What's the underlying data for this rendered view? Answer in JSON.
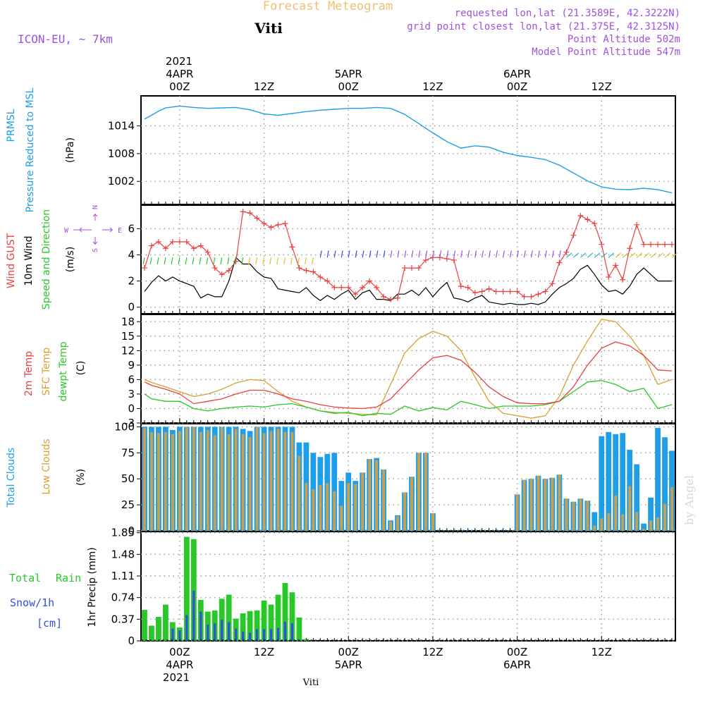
{
  "header": {
    "product_title": "Forecast Meteogram",
    "location": "Viti",
    "model": "ICON-EU, ~ 7km",
    "requested": "requested lon,lat (21.3589E, 42.3222N)",
    "grid_point": "grid point closest lon,lat (21.375E, 42.3125N)",
    "point_alt": "Point Altitude 502m",
    "model_alt": "Model Point Altitude 547m"
  },
  "time_axis": {
    "year": "2021",
    "top_labels": [
      {
        "t": 0,
        "line1": "4APR",
        "line2": "00Z"
      },
      {
        "t": 12,
        "line1": "",
        "line2": "12Z"
      },
      {
        "t": 24,
        "line1": "5APR",
        "line2": "00Z"
      },
      {
        "t": 36,
        "line1": "",
        "line2": "12Z"
      },
      {
        "t": 48,
        "line1": "6APR",
        "line2": "00Z"
      },
      {
        "t": 60,
        "line1": "",
        "line2": "12Z"
      }
    ],
    "bottom_labels": [
      {
        "t": 0,
        "line1": "00Z",
        "line2": "4APR"
      },
      {
        "t": 12,
        "line1": "12Z",
        "line2": ""
      },
      {
        "t": 24,
        "line1": "00Z",
        "line2": "5APR"
      },
      {
        "t": 36,
        "line1": "12Z",
        "line2": ""
      },
      {
        "t": 48,
        "line1": "00Z",
        "line2": "6APR"
      },
      {
        "t": 60,
        "line1": "12Z",
        "line2": ""
      }
    ],
    "t_min": -5.5,
    "t_max": 70.5
  },
  "footer_location": "Viti",
  "watermark": "by Angel",
  "panels": {
    "pressure": {
      "labels": [
        "PRMSL",
        "Pressure Reduced to MSL",
        "(hPa)"
      ],
      "ticks": [
        1002,
        1008,
        1014
      ],
      "ylim": [
        997,
        1020.5
      ]
    },
    "wind": {
      "labels": [
        "Wind GUST",
        "10m Wind",
        "Speed and Direction",
        "(m/s)"
      ],
      "compass": {
        "n": "N",
        "s": "S",
        "w": "W",
        "e": "E"
      },
      "ticks": [
        0,
        2,
        4,
        6
      ],
      "ylim": [
        -0.5,
        7.8
      ]
    },
    "temp": {
      "labels": [
        "2m Temp",
        "SFC Temp",
        "dewpt Temp",
        "(C)"
      ],
      "ticks": [
        -3,
        0,
        3,
        6,
        9,
        12,
        15,
        18
      ],
      "ylim": [
        -3,
        19.5
      ]
    },
    "clouds": {
      "labels": [
        "Total Clouds",
        "Low Clouds",
        "(%)"
      ],
      "ticks": [
        0,
        25,
        50,
        75,
        100
      ],
      "ylim": [
        0,
        103
      ]
    },
    "precip": {
      "labels": [
        "Total",
        "Rain",
        "Snow/1h",
        "[cm]",
        "1hr Precip (mm)"
      ],
      "ticks": [
        0,
        0.37,
        0.74,
        1.11,
        1.48,
        1.85
      ],
      "ylim": [
        0,
        1.87
      ]
    }
  },
  "colors": {
    "pressure": "#1e9ee8",
    "gust": "#e84040",
    "wind": "#000000",
    "t2m": "#e84040",
    "sfc": "#d9a030",
    "dewpt": "#28c828",
    "total_clouds": "#1e9ee8",
    "low_clouds": "#c8a050",
    "rain": "#28c828",
    "snow": "#3050e0",
    "purple": "#a050e0",
    "title_gold": "#f0c070"
  },
  "chart_data": [
    {
      "type": "line",
      "title": "PRMSL Pressure Reduced to MSL",
      "ylabel": "hPa",
      "x": [
        -5,
        -4,
        -3,
        -2,
        0,
        2,
        4,
        6,
        8,
        10,
        12,
        14,
        16,
        18,
        20,
        22,
        24,
        26,
        28,
        30,
        32,
        34,
        36,
        38,
        40,
        42,
        44,
        46,
        48,
        50,
        52,
        54,
        56,
        58,
        60,
        62,
        64,
        66,
        68,
        70
      ],
      "values": [
        1015.5,
        1016.3,
        1017.2,
        1017.9,
        1018.3,
        1018.0,
        1017.8,
        1017.9,
        1018.0,
        1017.5,
        1016.6,
        1016.3,
        1016.7,
        1017.1,
        1017.4,
        1017.6,
        1017.8,
        1017.8,
        1018.0,
        1017.8,
        1016.5,
        1014.5,
        1012.5,
        1010.6,
        1009.2,
        1009.7,
        1009.4,
        1008.3,
        1007.6,
        1007.2,
        1006.7,
        1005.5,
        1003.8,
        1002.1,
        1000.8,
        1000.3,
        1000.2,
        1000.5,
        1000.2,
        999.5
      ]
    },
    {
      "type": "line",
      "title": "Wind GUST / 10m Wind",
      "ylabel": "m/s",
      "x": [
        -5,
        -4,
        -3,
        -2,
        -1,
        0,
        1,
        2,
        3,
        4,
        5,
        6,
        7,
        8,
        9,
        10,
        11,
        12,
        13,
        14,
        15,
        16,
        17,
        18,
        19,
        20,
        21,
        22,
        23,
        24,
        25,
        26,
        27,
        28,
        29,
        30,
        31,
        32,
        33,
        34,
        35,
        36,
        37,
        38,
        39,
        40,
        41,
        42,
        43,
        44,
        45,
        46,
        47,
        48,
        49,
        50,
        51,
        52,
        53,
        54,
        55,
        56,
        57,
        58,
        59,
        60,
        61,
        62,
        63,
        64,
        65,
        66,
        67,
        68,
        69,
        70
      ],
      "series": [
        {
          "name": "Wind GUST",
          "values": [
            3.0,
            4.7,
            5.0,
            4.5,
            5.0,
            5.0,
            5.0,
            4.5,
            4.7,
            4.2,
            3.0,
            2.5,
            2.8,
            3.5,
            7.3,
            7.2,
            6.8,
            6.4,
            6.1,
            6.3,
            6.4,
            4.6,
            3.0,
            2.8,
            2.7,
            2.3,
            2.0,
            1.5,
            1.5,
            1.5,
            1.0,
            1.5,
            2.0,
            1.5,
            0.8,
            0.6,
            0.7,
            3.0,
            3.0,
            3.0,
            3.6,
            3.8,
            3.8,
            3.7,
            3.6,
            1.6,
            1.5,
            1.1,
            1.2,
            1.4,
            1.2,
            1.2,
            1.2,
            1.2,
            0.8,
            0.8,
            1.0,
            1.2,
            1.8,
            3.4,
            4.2,
            5.5,
            7.0,
            6.7,
            6.4,
            4.8,
            2.3,
            3.2,
            2.1,
            4.5,
            6.3,
            4.8,
            4.8,
            4.8,
            4.8,
            4.8
          ]
        },
        {
          "name": "10m Wind",
          "values": [
            1.2,
            1.9,
            2.4,
            2.0,
            2.3,
            2.0,
            1.8,
            1.6,
            0.7,
            1.0,
            0.8,
            0.8,
            2.0,
            3.8,
            3.3,
            3.3,
            2.7,
            2.3,
            2.2,
            1.4,
            1.3,
            1.2,
            1.1,
            1.5,
            0.9,
            0.5,
            0.9,
            0.6,
            1.0,
            1.3,
            0.6,
            1.1,
            1.3,
            0.6,
            0.6,
            0.5,
            1.0,
            1.0,
            1.3,
            0.9,
            1.5,
            0.8,
            1.4,
            1.9,
            0.7,
            0.6,
            0.4,
            0.7,
            0.9,
            0.4,
            0.3,
            0.2,
            0.3,
            0.2,
            0.2,
            0.3,
            0.2,
            0.4,
            1.0,
            1.5,
            1.8,
            2.2,
            2.9,
            3.2,
            2.5,
            1.7,
            1.2,
            1.3,
            1.0,
            1.6,
            2.5,
            3.0,
            2.5,
            2.0,
            2.0,
            2.0
          ]
        }
      ]
    },
    {
      "type": "line",
      "title": "2m Temp / SFC Temp / dewpt Temp",
      "ylabel": "C",
      "x": [
        -5,
        -4,
        -2,
        0,
        2,
        4,
        6,
        8,
        10,
        12,
        14,
        16,
        18,
        20,
        22,
        24,
        26,
        28,
        30,
        32,
        34,
        36,
        38,
        40,
        42,
        44,
        46,
        48,
        50,
        52,
        54,
        56,
        58,
        60,
        62,
        64,
        66,
        68,
        70
      ],
      "series": [
        {
          "name": "2m Temp",
          "values": [
            5.5,
            4.8,
            4.0,
            3.0,
            1.0,
            1.5,
            2.0,
            3.0,
            3.8,
            3.8,
            3.0,
            2.0,
            1.5,
            0.8,
            0.3,
            0.1,
            0.0,
            0.3,
            2.0,
            5.0,
            8.0,
            10.5,
            11.0,
            10.0,
            7.5,
            4.5,
            2.5,
            1.2,
            1.0,
            1.0,
            1.5,
            4.5,
            9.0,
            12.5,
            13.8,
            13.0,
            11.0,
            8.0,
            7.8
          ]
        },
        {
          "name": "SFC Temp",
          "values": [
            6.0,
            5.4,
            4.5,
            3.5,
            2.5,
            3.0,
            4.0,
            5.3,
            6.0,
            5.8,
            3.5,
            1.5,
            0.3,
            -0.5,
            -0.8,
            -1.0,
            -1.2,
            -1.3,
            5.0,
            11.5,
            14.5,
            16.0,
            15.0,
            12.0,
            6.5,
            1.5,
            -1.0,
            -1.5,
            -2.0,
            -1.5,
            2.5,
            9.0,
            14.0,
            18.5,
            18.0,
            15.0,
            11.0,
            5.0,
            6.0
          ]
        },
        {
          "name": "dewpt Temp",
          "values": [
            3.0,
            2.0,
            1.5,
            1.5,
            0.0,
            -0.5,
            0.0,
            0.3,
            0.5,
            0.3,
            0.8,
            1.0,
            0.3,
            -0.5,
            -1.0,
            -0.8,
            -1.5,
            -1.0,
            -1.2,
            0.5,
            -0.5,
            0.2,
            -0.3,
            1.5,
            0.8,
            0.0,
            0.5,
            0.5,
            0.5,
            0.8,
            1.5,
            3.5,
            5.5,
            5.8,
            5.0,
            3.5,
            4.2,
            0.0,
            0.8
          ]
        }
      ]
    },
    {
      "type": "bar",
      "title": "Total Clouds / Low Clouds",
      "ylabel": "%",
      "x": [
        -5,
        -4,
        -3,
        -2,
        -1,
        0,
        1,
        2,
        3,
        4,
        5,
        6,
        7,
        8,
        9,
        10,
        11,
        12,
        13,
        14,
        15,
        16,
        17,
        18,
        19,
        20,
        21,
        22,
        23,
        24,
        25,
        26,
        27,
        28,
        29,
        30,
        31,
        32,
        33,
        34,
        35,
        36,
        37,
        38,
        39,
        40,
        41,
        42,
        43,
        44,
        45,
        46,
        47,
        48,
        49,
        50,
        51,
        52,
        53,
        54,
        55,
        56,
        57,
        58,
        59,
        60,
        61,
        62,
        63,
        64,
        65,
        66,
        67,
        68,
        69,
        70
      ],
      "series": [
        {
          "name": "Total Clouds",
          "values": [
            100,
            100,
            100,
            100,
            97,
            100,
            100,
            100,
            100,
            100,
            100,
            100,
            100,
            100,
            98,
            96,
            100,
            100,
            100,
            100,
            100,
            100,
            85,
            85,
            75,
            71,
            74,
            75,
            48,
            56,
            48,
            56,
            69,
            70,
            59,
            10,
            15,
            37,
            52,
            75,
            75,
            17,
            0,
            0,
            0,
            0,
            0,
            0,
            0,
            0,
            0,
            0,
            0,
            35,
            49,
            50,
            53,
            50,
            51,
            54,
            31,
            28,
            31,
            29,
            18,
            91,
            95,
            93,
            94,
            78,
            64,
            7,
            32,
            99,
            90,
            77
          ]
        },
        {
          "name": "Low Clouds",
          "values": [
            99,
            95,
            94,
            95,
            93,
            96,
            100,
            100,
            95,
            97,
            92,
            100,
            93,
            98,
            93,
            90,
            100,
            94,
            96,
            98,
            95,
            95,
            72,
            46,
            40,
            44,
            46,
            38,
            24,
            46,
            45,
            56,
            69,
            68,
            59,
            9,
            14,
            37,
            52,
            75,
            75,
            17,
            0,
            0,
            0,
            0,
            0,
            0,
            0,
            0,
            0,
            0,
            0,
            35,
            49,
            50,
            53,
            50,
            51,
            54,
            31,
            28,
            31,
            29,
            5,
            12,
            17,
            34,
            16,
            43,
            18,
            2,
            10,
            13,
            26,
            42
          ]
        }
      ]
    },
    {
      "type": "bar",
      "title": "1hr Precip",
      "ylabel": "1hr Precip (mm)",
      "x": [
        -5,
        -4,
        -3,
        -2,
        -1,
        0,
        1,
        2,
        3,
        4,
        5,
        6,
        7,
        8,
        9,
        10,
        11,
        12,
        13,
        14,
        15,
        16,
        17,
        18,
        19,
        20,
        21,
        22,
        23,
        24,
        25,
        26,
        27,
        28,
        29,
        30,
        31,
        32,
        33,
        34,
        35,
        36,
        37,
        38,
        39,
        40,
        41,
        42,
        43,
        44,
        45,
        46,
        47,
        48,
        49,
        50,
        51,
        52,
        53,
        54,
        55,
        56,
        57,
        58,
        59,
        60,
        61,
        62,
        63,
        64,
        65,
        66,
        67,
        68,
        69,
        70
      ],
      "series": [
        {
          "name": "Total Rain",
          "values": [
            0.53,
            0.26,
            0.41,
            0.62,
            0.32,
            0.23,
            1.78,
            1.74,
            0.7,
            0.5,
            0.52,
            0.72,
            0.79,
            0.38,
            0.47,
            0.51,
            0.52,
            0.69,
            0.62,
            0.79,
            0.99,
            0.83,
            0.4,
            0.03,
            0,
            0,
            0,
            0,
            0,
            0,
            0,
            0,
            0,
            0,
            0,
            0,
            0,
            0,
            0,
            0,
            0,
            0,
            0,
            0,
            0,
            0,
            0,
            0,
            0,
            0,
            0,
            0,
            0,
            0,
            0,
            0,
            0,
            0,
            0,
            0,
            0,
            0,
            0,
            0,
            0,
            0,
            0,
            0,
            0,
            0,
            0,
            0,
            0,
            0,
            0,
            0
          ]
        },
        {
          "name": "Snow/1h",
          "values": [
            0,
            0,
            0,
            0,
            0.21,
            0.18,
            0.44,
            0.86,
            0.5,
            0.28,
            0.3,
            0.36,
            0.32,
            0.21,
            0.16,
            0.14,
            0.2,
            0.2,
            0.2,
            0.22,
            0.33,
            0.3,
            0.02,
            0,
            0,
            0,
            0,
            0,
            0,
            0,
            0,
            0,
            0,
            0,
            0,
            0,
            0,
            0,
            0,
            0,
            0,
            0,
            0,
            0,
            0,
            0,
            0,
            0,
            0,
            0,
            0,
            0,
            0,
            0,
            0,
            0,
            0,
            0,
            0,
            0,
            0,
            0,
            0,
            0,
            0,
            0,
            0,
            0,
            0,
            0,
            0,
            0,
            0,
            0,
            0,
            0
          ]
        }
      ]
    }
  ]
}
